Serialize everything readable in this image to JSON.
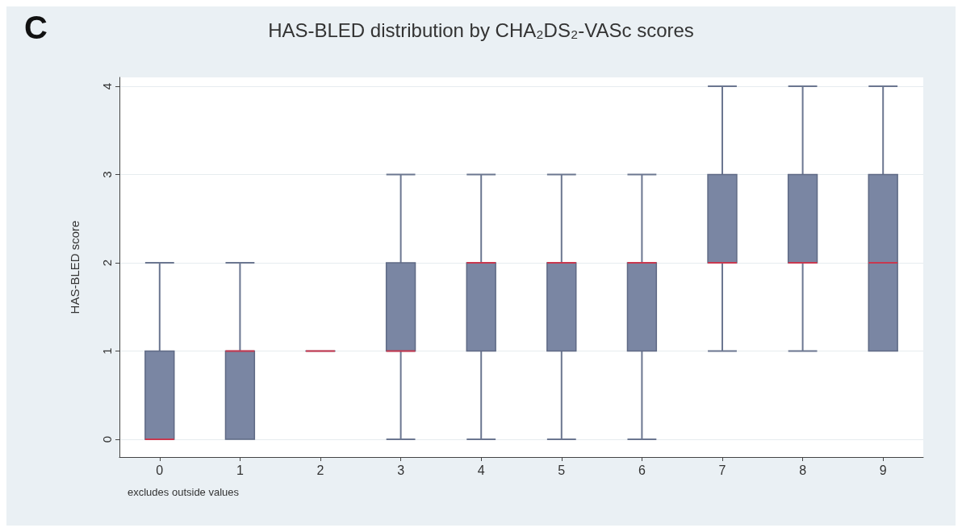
{
  "chart_data": {
    "type": "box",
    "title": "HAS-BLED distribution by CHA₂DS₂-VASc scores",
    "ylabel": "HAS-BLED score",
    "annotations": [
      "C",
      "excludes outside values"
    ],
    "categories": [
      "0",
      "1",
      "2",
      "3",
      "4",
      "5",
      "6",
      "7",
      "8",
      "9"
    ],
    "color": "#7a86a3",
    "boxes": [
      {
        "low": 0,
        "q1": 0,
        "median": 0,
        "q3": 1,
        "high": 2
      },
      {
        "low": 0,
        "q1": 0,
        "median": 1,
        "q3": 1,
        "high": 2
      },
      {
        "low": 1,
        "q1": 1,
        "median": 1,
        "q3": 1,
        "high": 1
      },
      {
        "low": 0,
        "q1": 1,
        "median": 1,
        "q3": 2,
        "high": 3
      },
      {
        "low": 0,
        "q1": 1,
        "median": 2,
        "q3": 2,
        "high": 3
      },
      {
        "low": 0,
        "q1": 1,
        "median": 2,
        "q3": 2,
        "high": 3
      },
      {
        "low": 0,
        "q1": 1,
        "median": 2,
        "q3": 2,
        "high": 3
      },
      {
        "low": 1,
        "q1": 2,
        "median": 2,
        "q3": 3,
        "high": 4
      },
      {
        "low": 1,
        "q1": 2,
        "median": 2,
        "q3": 3,
        "high": 4
      },
      {
        "low": 1,
        "q1": 1,
        "median": 2,
        "q3": 3,
        "high": 4
      }
    ],
    "ylim": [
      -0.2,
      4.1
    ],
    "yticks": [
      0,
      1,
      2,
      3,
      4
    ],
    "grid": "y"
  }
}
